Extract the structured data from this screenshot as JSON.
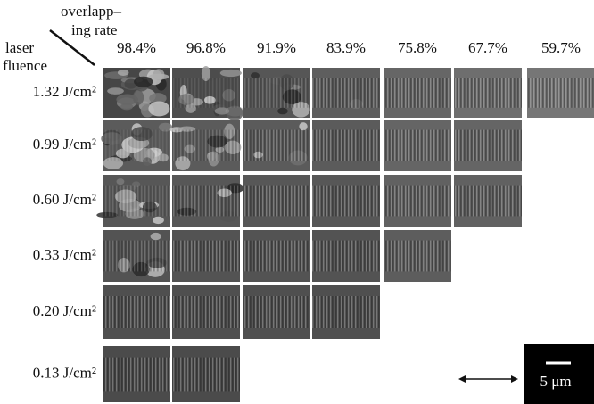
{
  "header": {
    "corner_top": [
      "overlapp–",
      "ing rate"
    ],
    "corner_left": [
      "laser",
      "fluence"
    ]
  },
  "columns": [
    "98.4%",
    "96.8%",
    "91.9%",
    "83.9%",
    "75.8%",
    "67.7%",
    "59.7%"
  ],
  "rows": [
    "1.32 J/cm²",
    "0.99 J/cm²",
    "0.60 J/cm²",
    "0.33 J/cm²",
    "0.20 J/cm²",
    "0.13 J/cm²"
  ],
  "scale_bar": "5 μm"
}
